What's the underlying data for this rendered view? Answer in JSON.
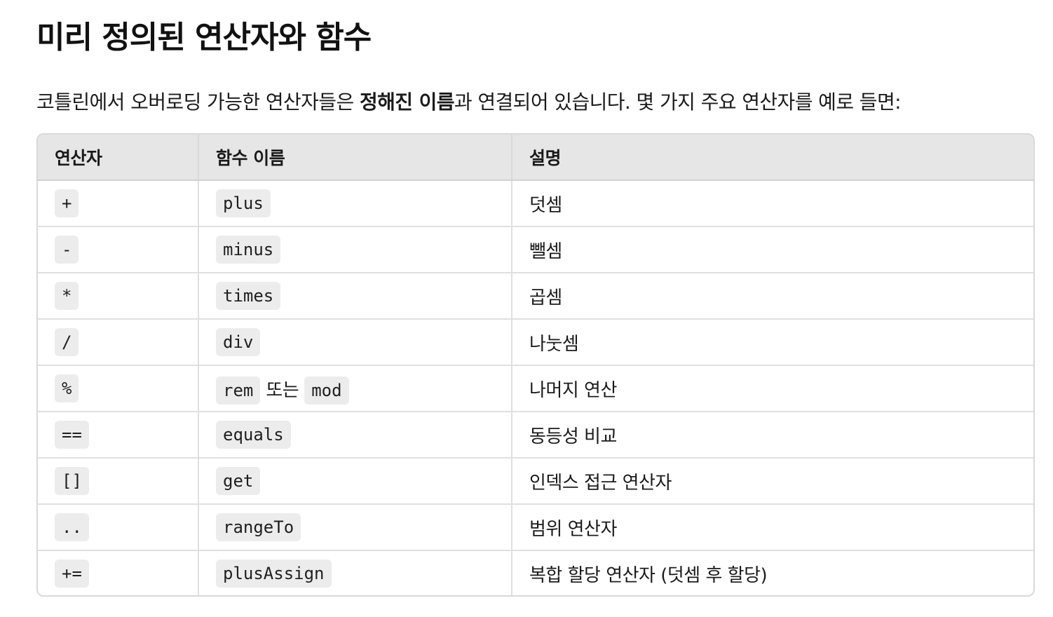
{
  "heading": "미리 정의된 연산자와 함수",
  "intro": {
    "before": "코틀린에서 오버로딩 가능한 연산자들은 ",
    "bold": "정해진 이름",
    "after": "과 연결되어 있습니다. 몇 가지 주요 연산자를 예로 들면:"
  },
  "table": {
    "headers": [
      "연산자",
      "함수 이름",
      "설명"
    ],
    "rows": [
      {
        "operator": "+",
        "function": "plus",
        "description": "덧셈"
      },
      {
        "operator": "-",
        "function": "minus",
        "description": "뺄셈"
      },
      {
        "operator": "*",
        "function": "times",
        "description": "곱셈"
      },
      {
        "operator": "/",
        "function": "div",
        "description": "나눗셈"
      },
      {
        "operator": "%",
        "function": "rem",
        "joiner": "또는",
        "function_alt": "mod",
        "description": "나머지 연산"
      },
      {
        "operator": "==",
        "function": "equals",
        "description": "동등성 비교"
      },
      {
        "operator": "[]",
        "function": "get",
        "description": "인덱스 접근 연산자"
      },
      {
        "operator": "..",
        "function": "rangeTo",
        "description": "범위 연산자"
      },
      {
        "operator": "+=",
        "function": "plusAssign",
        "description": "복합 할당 연산자 (덧셈 후 할당)"
      }
    ]
  }
}
